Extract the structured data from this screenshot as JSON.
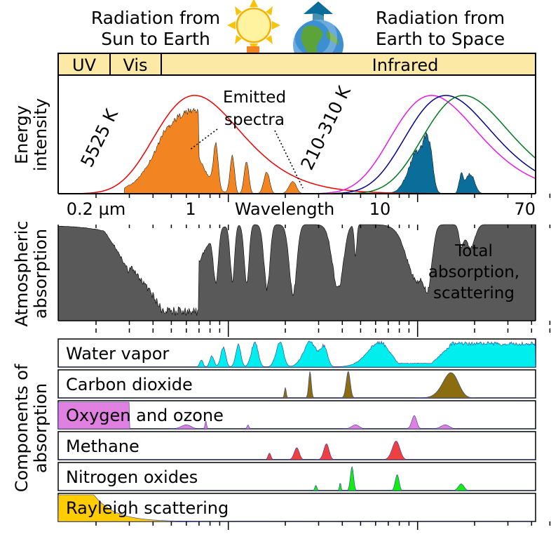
{
  "header": {
    "sun_caption": [
      "Radiation from",
      "Sun to Earth"
    ],
    "earth_caption": [
      "Radiation from",
      "Earth to Space"
    ]
  },
  "bands": {
    "uv": "UV",
    "vis": "Vis",
    "infrared": "Infrared",
    "band_fill": "#fce9a6"
  },
  "emission": {
    "y_label": [
      "Energy",
      "intensity"
    ],
    "sun_temp": "5525 K",
    "earth_temp": "210-310 K",
    "emitted_label": [
      "Emitted",
      "spectra"
    ],
    "sun_color": "#f28522",
    "earth_color": "#0a6d9a",
    "curve_colors": [
      "#ee0000",
      "#e619e6",
      "#000090",
      "#00781e"
    ]
  },
  "wavelength_axis": {
    "label": "Wavelength",
    "ticks": [
      "0.2 µm",
      "1",
      "10",
      "70"
    ],
    "scale": "log"
  },
  "atmosphere": {
    "y_label": [
      "Atmospheric",
      "absorption"
    ],
    "note": [
      "Total",
      "absorption,",
      "scattering"
    ],
    "fill": "#595959"
  },
  "components": {
    "y_label": [
      "Components of",
      "absorption"
    ],
    "rows": [
      {
        "label": "Water vapor",
        "color": "#00eeee"
      },
      {
        "label": "Carbon dioxide",
        "color": "#8b6d10"
      },
      {
        "label": "Oxygen and ozone",
        "color": "#e080e0"
      },
      {
        "label": "Methane",
        "color": "#ee4040"
      },
      {
        "label": "Nitrogen oxides",
        "color": "#11ee11"
      },
      {
        "label": "Rayleigh scattering",
        "color": "#ffcc00"
      }
    ]
  }
}
